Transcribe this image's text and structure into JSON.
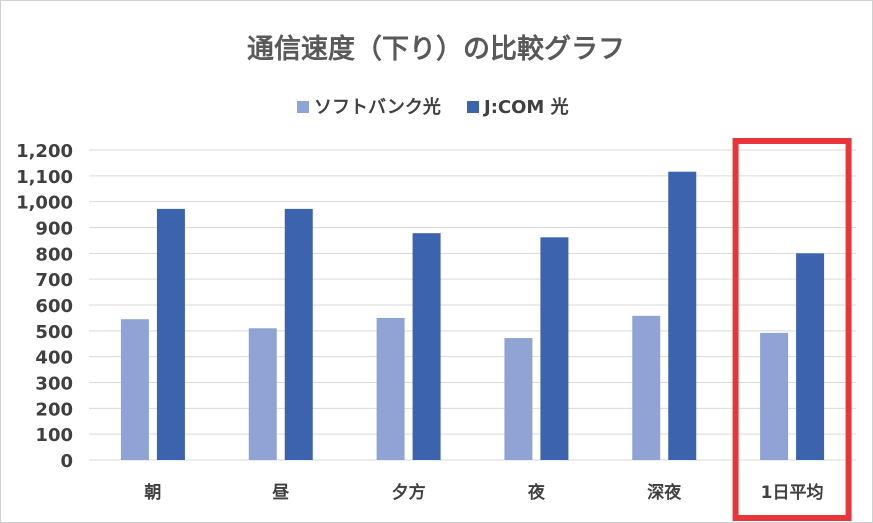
{
  "chart_data": {
    "type": "bar",
    "title": "通信速度（下り）の比較グラフ",
    "categories": [
      "朝",
      "昼",
      "夕方",
      "夜",
      "深夜",
      "1日平均"
    ],
    "series": [
      {
        "name": "ソフトバンク光",
        "color": "#8FA4D4",
        "values": [
          545,
          510,
          550,
          472,
          558,
          492
        ]
      },
      {
        "name": "J:COM 光",
        "color": "#3C63AE",
        "values": [
          972,
          972,
          878,
          862,
          1116,
          800
        ]
      }
    ],
    "ylim": [
      0,
      1200
    ],
    "yticks": [
      0,
      100,
      200,
      300,
      400,
      500,
      600,
      700,
      800,
      900,
      1000,
      1100,
      1200
    ],
    "ytick_labels": [
      "0",
      "100",
      "200",
      "300",
      "400",
      "500",
      "600",
      "700",
      "800",
      "900",
      "1,000",
      "1,100",
      "1,200"
    ],
    "grid": true,
    "legend_position": "top-center",
    "highlight": {
      "category": "1日平均",
      "color": "#E8353A"
    }
  }
}
